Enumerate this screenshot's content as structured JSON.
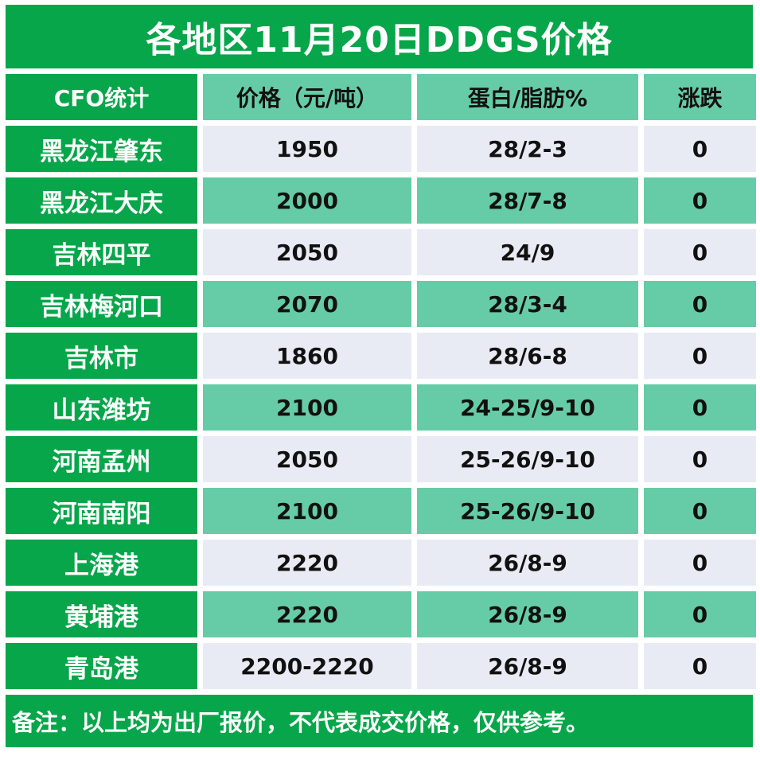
{
  "title": "各地区11月20日DDGS价格",
  "headers": [
    "CFO统计",
    "价格（元/吨）",
    "蛋白/脂肪%",
    "涨跌"
  ],
  "rows": [
    {
      "region": "黑龙江肇东",
      "price": "1950",
      "protein_fat": "28/2-3",
      "change": "0"
    },
    {
      "region": "黑龙江大庆",
      "price": "2000",
      "protein_fat": "28/7-8",
      "change": "0"
    },
    {
      "region": "吉林四平",
      "price": "2050",
      "protein_fat": "24/9",
      "change": "0"
    },
    {
      "region": "吉林梅河口",
      "price": "2070",
      "protein_fat": "28/3-4",
      "change": "0"
    },
    {
      "region": "吉林市",
      "price": "1860",
      "protein_fat": "28/6-8",
      "change": "0"
    },
    {
      "region": "山东潍坊",
      "price": "2100",
      "protein_fat": "24-25/9-10",
      "change": "0"
    },
    {
      "region": "河南孟州",
      "price": "2050",
      "protein_fat": "25-26/9-10",
      "change": "0"
    },
    {
      "region": "河南南阳",
      "price": "2100",
      "protein_fat": "25-26/9-10",
      "change": "0"
    },
    {
      "region": "上海港",
      "price": "2220",
      "protein_fat": "26/8-9",
      "change": "0"
    },
    {
      "region": "黄埔港",
      "price": "2220",
      "protein_fat": "26/8-9",
      "change": "0"
    },
    {
      "region": "青岛港",
      "price": "2200-2220",
      "protein_fat": "26/8-9",
      "change": "0"
    }
  ],
  "note": "备注：以上均为出厂报价，不代表成交价格，仅供参考。",
  "colors": {
    "green": "#07a64a",
    "teal": "#66cca8",
    "light": "#e9ebf4"
  }
}
